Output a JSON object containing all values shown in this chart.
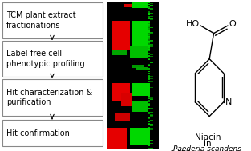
{
  "background_color": "#ffffff",
  "flow_boxes": [
    "TCM plant extract\nfractionations",
    "Label-free cell\nphenotypic profiling",
    "Hit characterization &\npurification",
    "Hit confirmation"
  ],
  "font_size_box": 7.0,
  "font_size_label": 7.5,
  "font_size_species": 7.0
}
